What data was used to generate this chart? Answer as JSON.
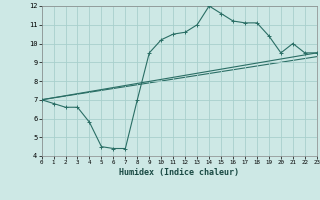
{
  "xlabel": "Humidex (Indice chaleur)",
  "ylabel": "",
  "xlim": [
    0,
    23
  ],
  "ylim": [
    4,
    12
  ],
  "xticks": [
    0,
    1,
    2,
    3,
    4,
    5,
    6,
    7,
    8,
    9,
    10,
    11,
    12,
    13,
    14,
    15,
    16,
    17,
    18,
    19,
    20,
    21,
    22,
    23
  ],
  "yticks": [
    4,
    5,
    6,
    7,
    8,
    9,
    10,
    11,
    12
  ],
  "bg_color": "#cde8e5",
  "grid_color": "#a8d0cc",
  "line_color": "#2a6e65",
  "line1_x": [
    0,
    1,
    2,
    3,
    4,
    5,
    6,
    7,
    8,
    9,
    10,
    11,
    12,
    13,
    14,
    15,
    16,
    17,
    18,
    19,
    20,
    21,
    22,
    23
  ],
  "line1_y": [
    7.0,
    6.8,
    6.6,
    6.6,
    5.8,
    4.5,
    4.4,
    4.4,
    7.0,
    9.5,
    10.2,
    10.5,
    10.6,
    11.0,
    12.0,
    11.6,
    11.2,
    11.1,
    11.1,
    10.4,
    9.5,
    10.0,
    9.5,
    9.5
  ],
  "line2_x": [
    0,
    23
  ],
  "line2_y": [
    7.0,
    9.5
  ],
  "line3_x": [
    0,
    23
  ],
  "line3_y": [
    7.0,
    9.3
  ],
  "marker": "+",
  "markersize": 3,
  "linewidth": 0.8
}
